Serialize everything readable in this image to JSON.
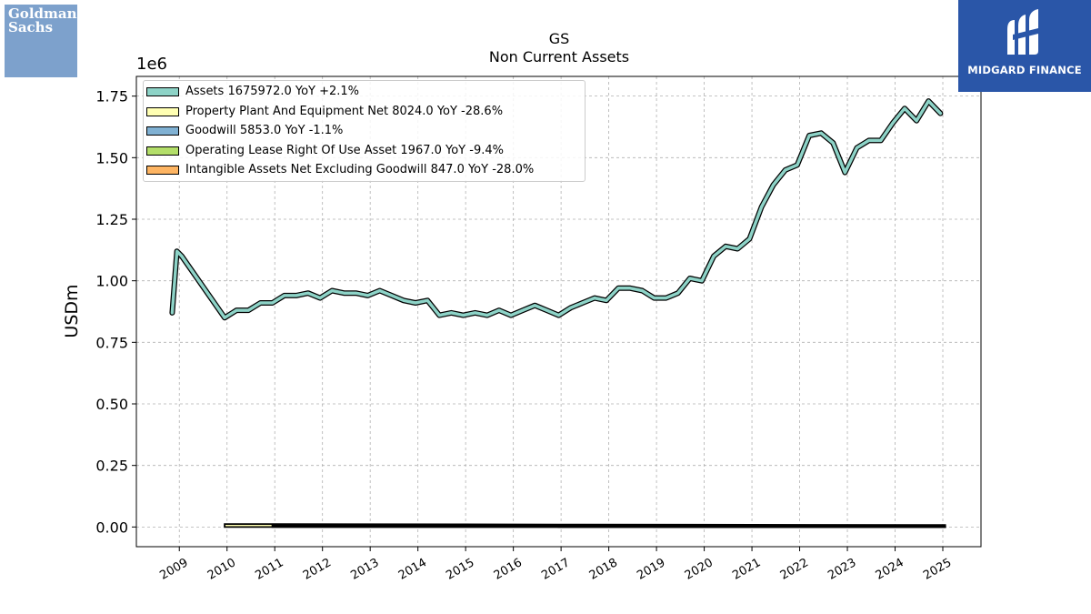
{
  "title": "GS",
  "subtitle": "Non Current  Assets",
  "ylabel": "USDm",
  "y_offset_label": "1e6",
  "logos": {
    "left_text_line1": "Goldman",
    "left_text_line2": "Sachs",
    "right_text": "MIDGARD FINANCE"
  },
  "legend": [
    {
      "label": "Assets  1675972.0 YoY +2.1%",
      "color": "#8dd3c7"
    },
    {
      "label": "Property Plant And Equipment Net  8024.0 YoY -28.6%",
      "color": "#ffffb3"
    },
    {
      "label": "Goodwill  5853.0 YoY -1.1%",
      "color": "#80b1d3"
    },
    {
      "label": "Operating Lease Right Of Use Asset  1967.0 YoY -9.4%",
      "color": "#b3de69"
    },
    {
      "label": "Intangible Assets Net Excluding Goodwill  847.0 YoY -28.0%",
      "color": "#fdb462"
    }
  ],
  "chart_data": {
    "type": "line",
    "xlim": [
      2008.1,
      2025.8
    ],
    "ylim": [
      -0.08,
      1.83
    ],
    "y_ticks": [
      0.0,
      0.25,
      0.5,
      0.75,
      1.0,
      1.25,
      1.5,
      1.75
    ],
    "y_tick_labels": [
      "0.00",
      "0.25",
      "0.50",
      "0.75",
      "1.00",
      "1.25",
      "1.50",
      "1.75"
    ],
    "x_ticks": [
      2009,
      2010,
      2011,
      2012,
      2013,
      2014,
      2015,
      2016,
      2017,
      2018,
      2019,
      2020,
      2021,
      2022,
      2023,
      2024,
      2025
    ],
    "x_tick_labels": [
      "2009",
      "2010",
      "2011",
      "2012",
      "2013",
      "2014",
      "2015",
      "2016",
      "2017",
      "2018",
      "2019",
      "2020",
      "2021",
      "2022",
      "2023",
      "2024",
      "2025"
    ],
    "grid": true,
    "legend_position": "top-left",
    "series": [
      {
        "name": "Assets",
        "color": "#8dd3c7",
        "x": [
          2008.85,
          2008.95,
          2009.05,
          2009.95,
          2010.2,
          2010.45,
          2010.7,
          2010.95,
          2011.2,
          2011.45,
          2011.7,
          2011.95,
          2012.2,
          2012.45,
          2012.7,
          2012.95,
          2013.2,
          2013.45,
          2013.7,
          2013.95,
          2014.2,
          2014.45,
          2014.7,
          2014.95,
          2015.2,
          2015.45,
          2015.7,
          2015.95,
          2016.2,
          2016.45,
          2016.7,
          2016.95,
          2017.2,
          2017.45,
          2017.7,
          2017.95,
          2018.2,
          2018.45,
          2018.7,
          2018.95,
          2019.2,
          2019.45,
          2019.7,
          2019.95,
          2020.2,
          2020.45,
          2020.7,
          2020.95,
          2021.2,
          2021.45,
          2021.7,
          2021.95,
          2022.2,
          2022.45,
          2022.7,
          2022.95,
          2023.2,
          2023.45,
          2023.7,
          2023.95,
          2024.2,
          2024.45,
          2024.7,
          2024.95
        ],
        "y": [
          0.87,
          1.12,
          1.1,
          0.85,
          0.88,
          0.88,
          0.91,
          0.91,
          0.94,
          0.94,
          0.95,
          0.93,
          0.96,
          0.95,
          0.95,
          0.94,
          0.96,
          0.94,
          0.92,
          0.91,
          0.92,
          0.86,
          0.87,
          0.86,
          0.87,
          0.86,
          0.88,
          0.86,
          0.88,
          0.9,
          0.88,
          0.86,
          0.89,
          0.91,
          0.93,
          0.92,
          0.97,
          0.97,
          0.96,
          0.93,
          0.93,
          0.95,
          1.01,
          1.0,
          1.1,
          1.14,
          1.13,
          1.17,
          1.3,
          1.39,
          1.45,
          1.47,
          1.59,
          1.6,
          1.56,
          1.44,
          1.54,
          1.57,
          1.57,
          1.64,
          1.7,
          1.65,
          1.73,
          1.68
        ]
      },
      {
        "name": "Property Plant And Equipment Net",
        "color": "#ffffb3",
        "x": [
          2009.95,
          2010.95,
          2016.95,
          2025.05
        ],
        "y": [
          0.012,
          0.012,
          0.01,
          0.008
        ]
      },
      {
        "name": "Goodwill",
        "color": "#80b1d3",
        "x": [
          2010.95,
          2016.95,
          2025.05
        ],
        "y": [
          0.006,
          0.006,
          0.006
        ]
      },
      {
        "name": "Operating Lease Right Of Use Asset",
        "color": "#b3de69",
        "x": [
          2018.95,
          2025.05
        ],
        "y": [
          0.002,
          0.002
        ]
      },
      {
        "name": "Intangible Assets Net Excluding Goodwill",
        "color": "#fdb462",
        "x": [
          2016.95,
          2025.05
        ],
        "y": [
          0.001,
          0.001
        ]
      }
    ]
  }
}
